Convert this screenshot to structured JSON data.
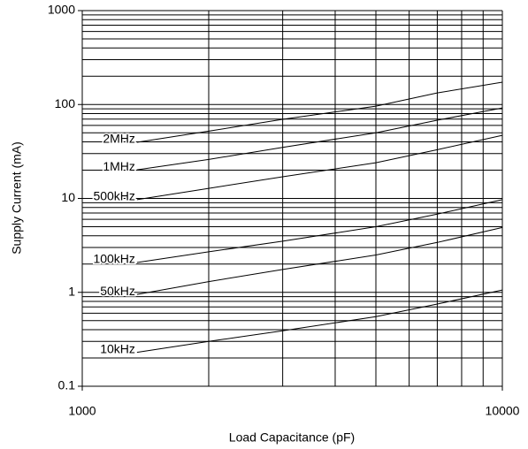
{
  "chart_data": {
    "type": "line",
    "x_label": "Load Capacitance (pF)",
    "y_label": "Supply Current (mA)",
    "log_x": true,
    "log_y": true,
    "grid": true,
    "xlim": [
      1000,
      10000
    ],
    "xticks": [
      1000,
      10000
    ],
    "ylim": [
      0.1,
      1000
    ],
    "yticks": [
      0.1,
      1,
      10,
      100,
      1000
    ],
    "xgrid": [
      2000,
      3000,
      4000,
      5000,
      6000,
      7000,
      8000,
      9000
    ],
    "ygrid": [
      0.2,
      0.3,
      0.4,
      0.5,
      0.6,
      0.7,
      0.8,
      0.9,
      2,
      3,
      4,
      5,
      6,
      7,
      8,
      9,
      20,
      30,
      40,
      50,
      60,
      70,
      80,
      90,
      200,
      300,
      400,
      500,
      600,
      700,
      800,
      900
    ],
    "x": [
      1350,
      2000,
      3000,
      5000,
      7000,
      10000
    ],
    "series": [
      {
        "name": "2MHz",
        "color": "#000000",
        "values": [
          39.6,
          52,
          69.5,
          96,
          133,
          173
        ]
      },
      {
        "name": "1MHz",
        "color": "#000000",
        "values": [
          20.2,
          26,
          35,
          50,
          68,
          92
        ]
      },
      {
        "name": "500kHz",
        "color": "#000000",
        "values": [
          9.7,
          12.8,
          17,
          24,
          33,
          47
        ]
      },
      {
        "name": "100kHz",
        "color": "#000000",
        "values": [
          2.08,
          2.7,
          3.5,
          5.0,
          6.8,
          9.7
        ]
      },
      {
        "name": "50kHz",
        "color": "#000000",
        "values": [
          0.95,
          1.3,
          1.75,
          2.5,
          3.4,
          4.9
        ]
      },
      {
        "name": "10kHz",
        "color": "#000000",
        "values": [
          0.23,
          0.3,
          0.39,
          0.55,
          0.75,
          1.06
        ]
      }
    ]
  }
}
